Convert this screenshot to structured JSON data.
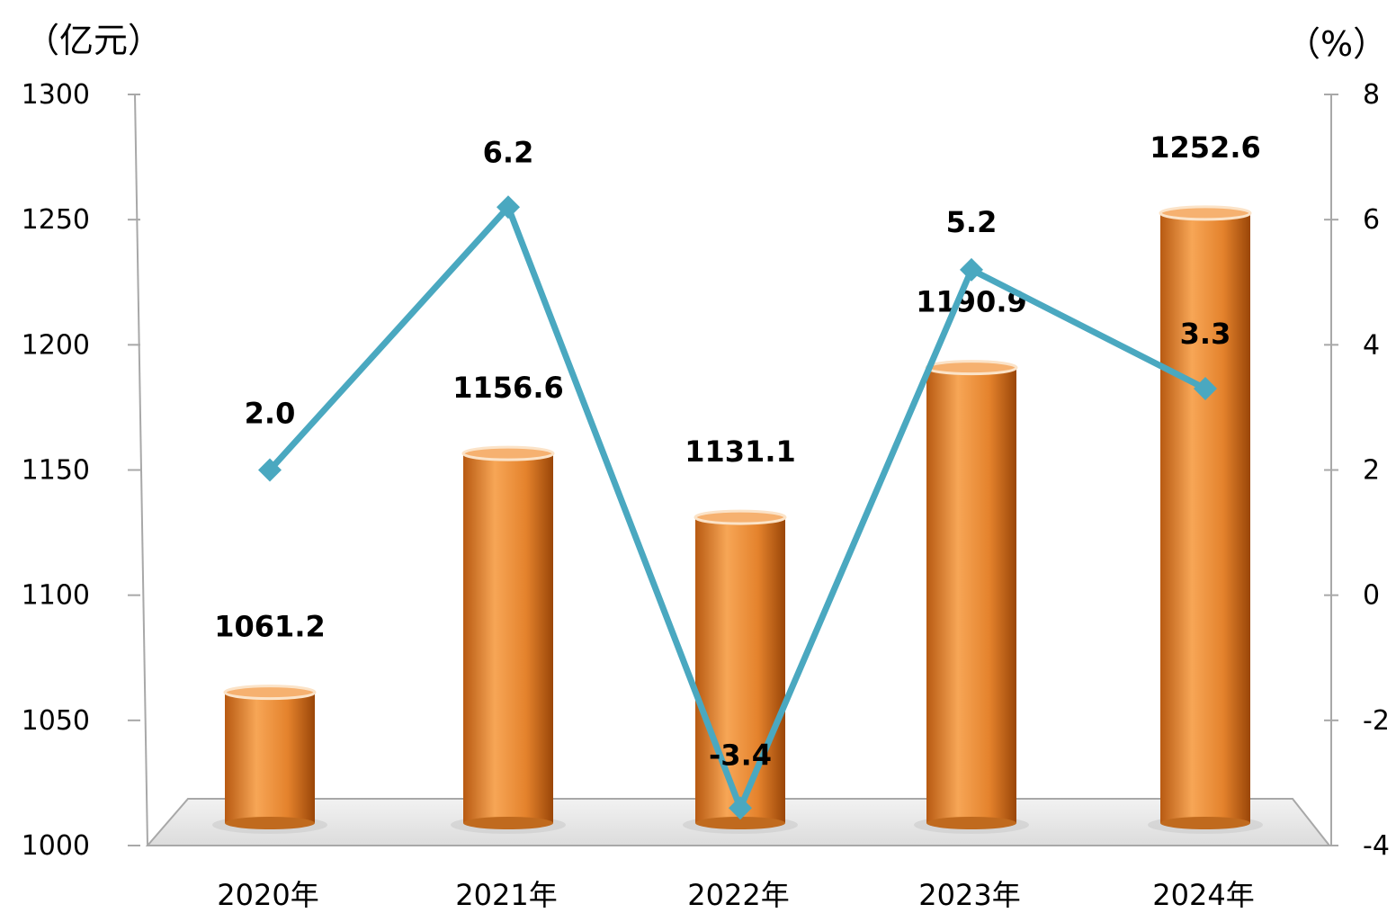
{
  "chart_data": {
    "type": "bar",
    "categories": [
      "2020年",
      "2021年",
      "2022年",
      "2023年",
      "2024年"
    ],
    "series": [
      {
        "values": [
          1061.2,
          1156.6,
          1131.1,
          1190.9,
          1252.6
        ],
        "color": "#f09a4a",
        "axis": "left"
      },
      {
        "values": [
          2.0,
          6.2,
          -3.4,
          5.2,
          3.3
        ],
        "color": "#4aa8c0",
        "axis": "right",
        "type": "line"
      }
    ],
    "bar_labels": [
      "1061.2",
      "1156.6",
      "1131.1",
      "1190.9",
      "1252.6"
    ],
    "line_labels": [
      "2.0",
      "6.2",
      "-3.4",
      "5.2",
      "3.3"
    ],
    "y_left": {
      "unit": "（亿元）",
      "ylim": [
        1000,
        1300
      ],
      "ticks": [
        "1000",
        "1050",
        "1100",
        "1150",
        "1200",
        "1250",
        "1300"
      ]
    },
    "y_right": {
      "unit": "（%）",
      "ylim": [
        -4,
        8
      ],
      "ticks": [
        "-4",
        "-2",
        "0",
        "2",
        "4",
        "6",
        "8"
      ]
    },
    "grid": false,
    "legend": "none"
  }
}
